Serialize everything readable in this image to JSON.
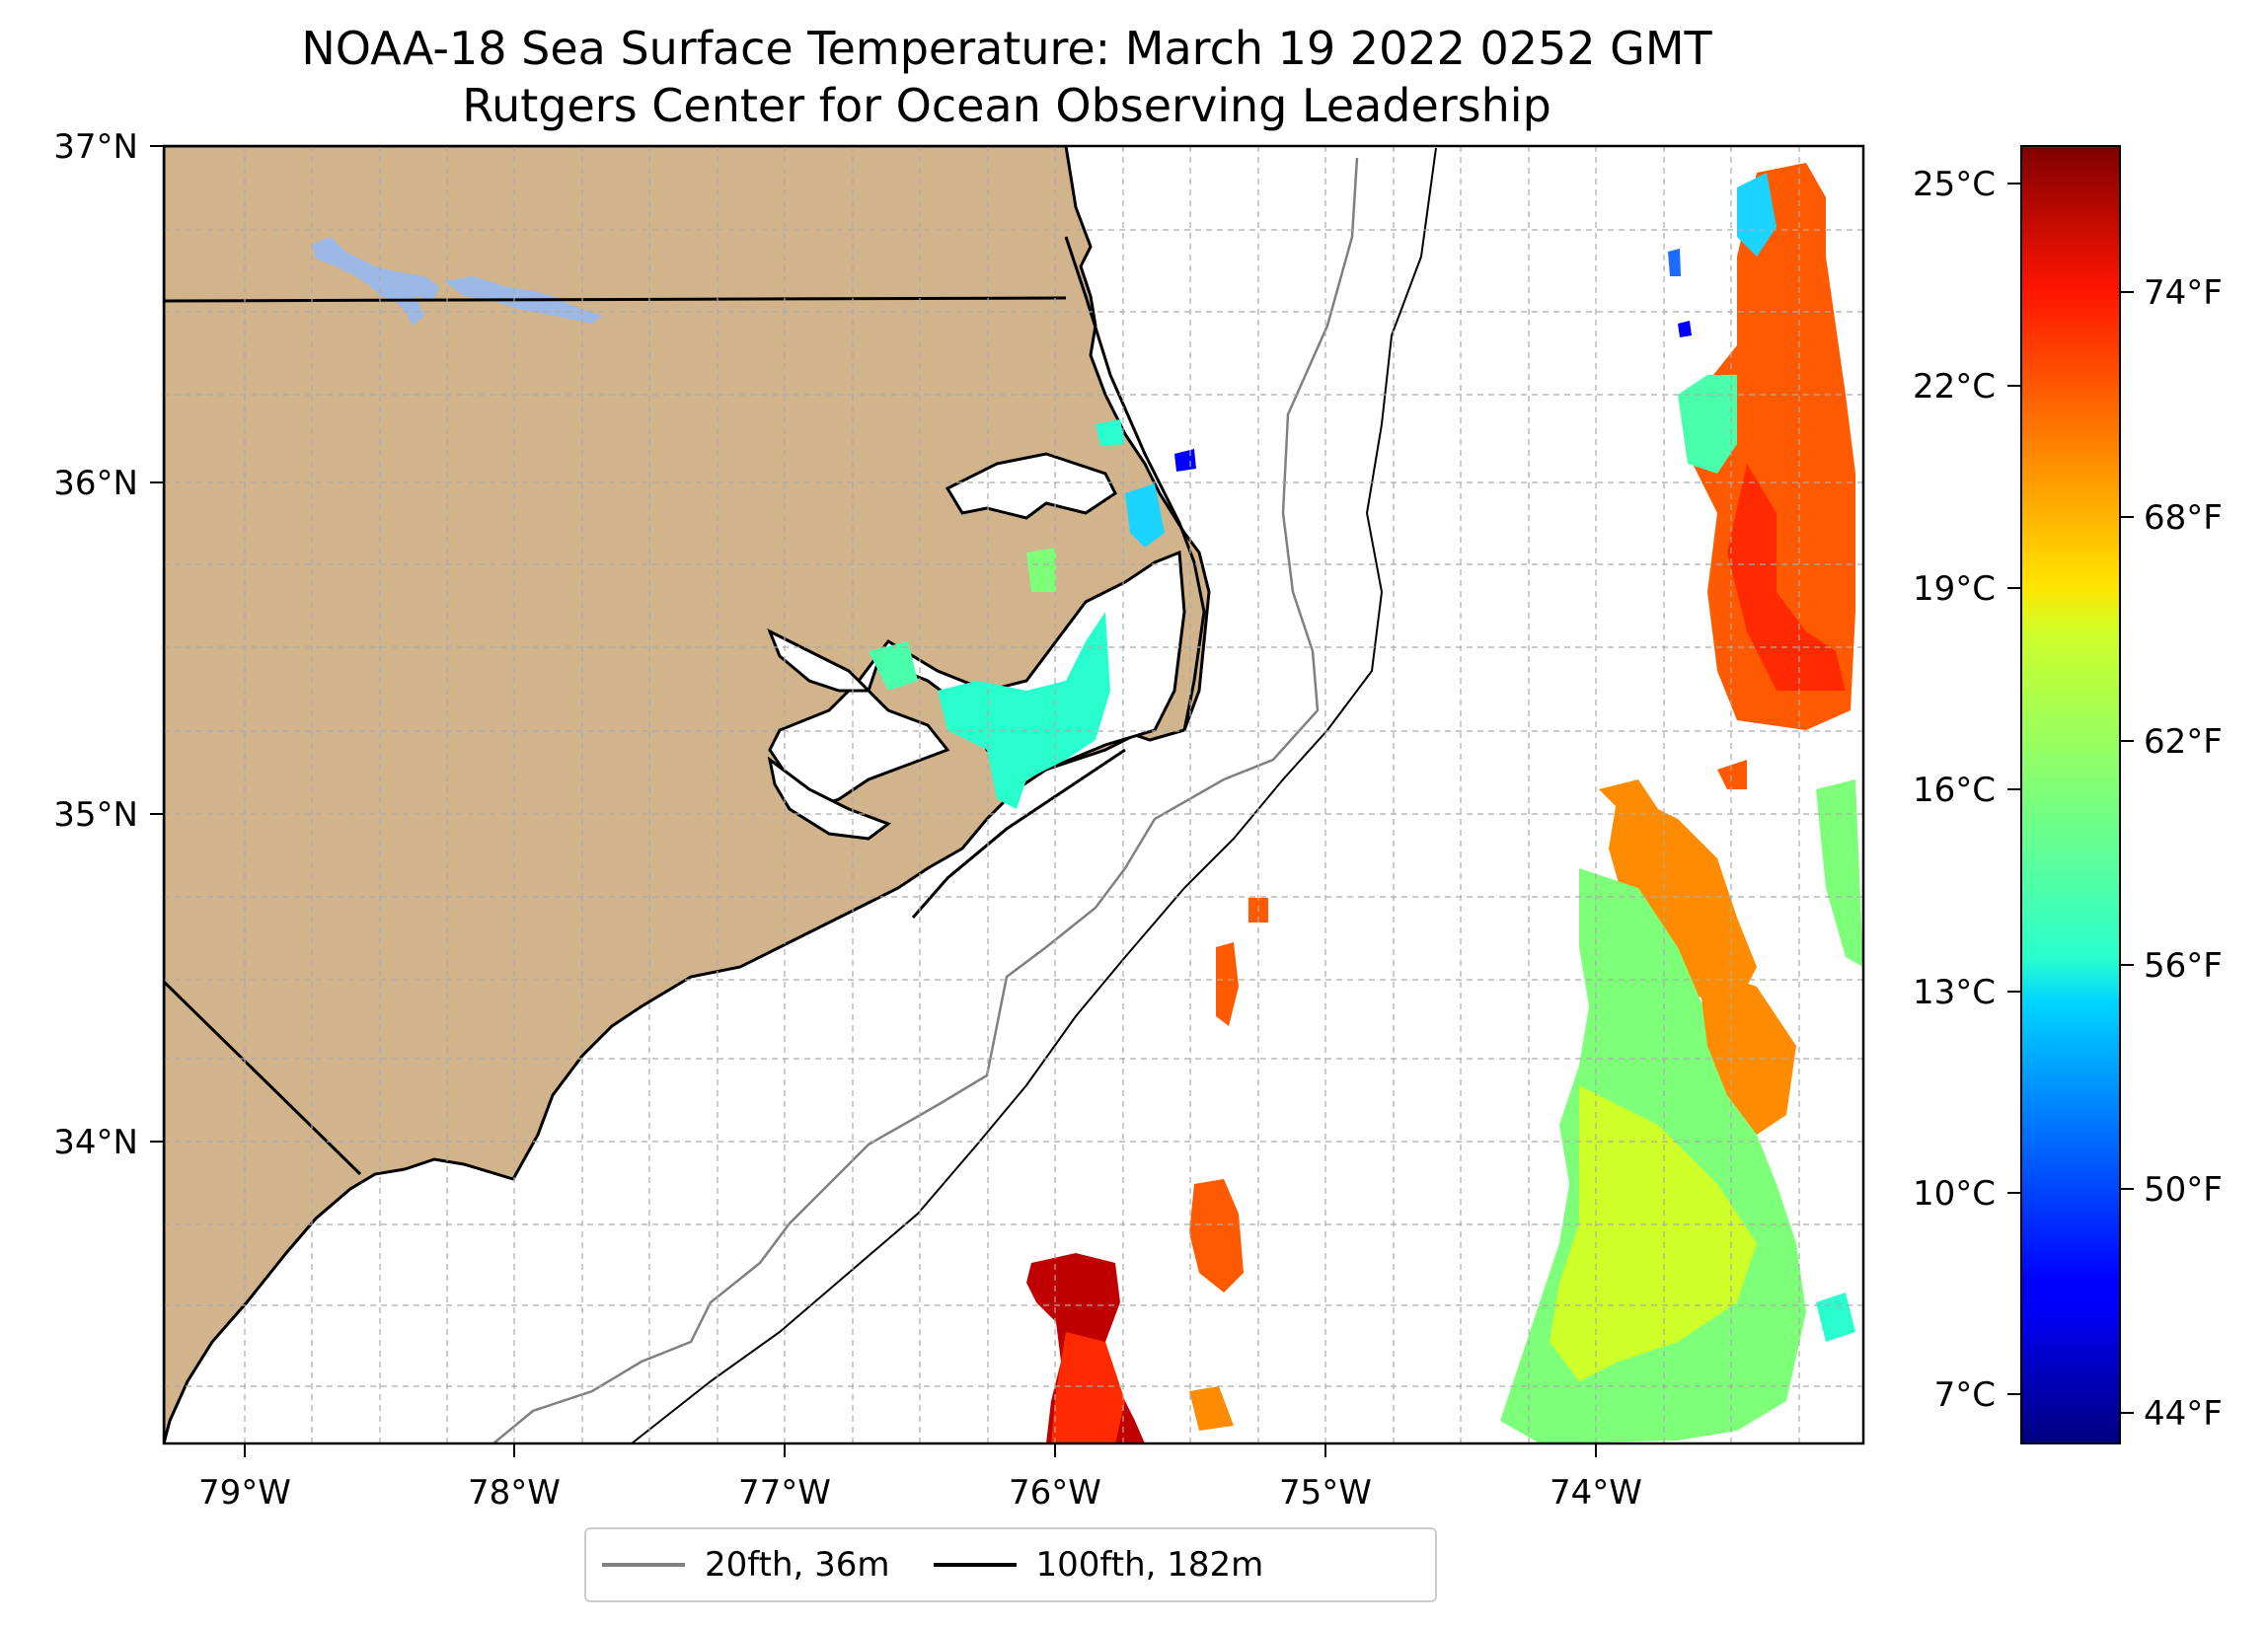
{
  "title": {
    "line1": "NOAA-18 Sea Surface Temperature: March 19 2022 0252 GMT",
    "line2": "Rutgers Center for Ocean Observing Leadership"
  },
  "map": {
    "lon_range": [
      -79.3,
      -73.0
    ],
    "lat_range": [
      33.2,
      37.0
    ],
    "lon_ticks": [
      "79°W",
      "78°W",
      "77°W",
      "76°W",
      "75°W",
      "74°W"
    ],
    "lat_ticks": [
      "37°N",
      "36°N",
      "35°N",
      "34°N"
    ],
    "land_color": "#d2b48c",
    "lake_color": "#9bb8e6",
    "grid": true,
    "grid_style": "dashed"
  },
  "colorbar": {
    "colormap": "jet",
    "celsius_ticks": [
      "25°C",
      "22°C",
      "19°C",
      "16°C",
      "13°C",
      "10°C",
      "7°C"
    ],
    "fahrenheit_ticks": [
      "74°F",
      "68°F",
      "62°F",
      "56°F",
      "50°F",
      "44°F"
    ],
    "range_c": [
      6.5,
      25.8
    ]
  },
  "legend": {
    "placement": "bottom-center",
    "items": [
      {
        "label": "20fth, 36m",
        "color": "#808080"
      },
      {
        "label": "100fth, 182m",
        "color": "#000000"
      }
    ]
  }
}
